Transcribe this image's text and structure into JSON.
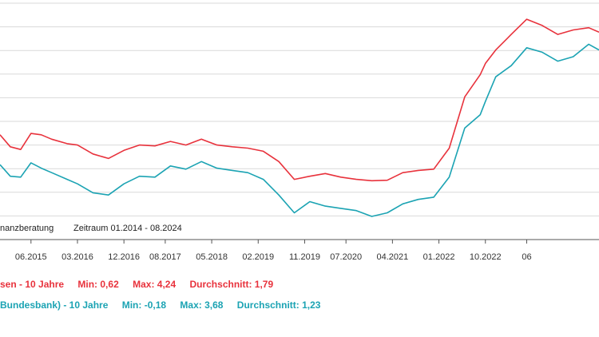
{
  "colors": {
    "series_a": "#e8323c",
    "series_b": "#1ba3b3",
    "grid": "#d9d9d9",
    "axis": "#555555"
  },
  "annotations": {
    "source": "nanzberatung",
    "period": "Zeitraum 01.2014 - 08.2024"
  },
  "legend": [
    {
      "name": "sen - 10 Jahre",
      "min": "Min: 0,62",
      "max": "Max: 4,24",
      "avg": "Durchschnitt: 1,79"
    },
    {
      "name": "Bundesbank) - 10 Jahre",
      "min": "Min: -0,18",
      "max": "Max: 3,68",
      "avg": "Durchschnitt: 1,23"
    }
  ],
  "chart_data": {
    "type": "line",
    "x_ticks": [
      "06.2015",
      "03.2016",
      "12.2016",
      "08.2017",
      "05.2018",
      "02.2019",
      "11.2019",
      "07.2020",
      "04.2021",
      "01.2022",
      "10.2022",
      "06"
    ],
    "x_range": [
      "2014-12",
      "2024-08"
    ],
    "ylim": [
      -0.7,
      4.6
    ],
    "grid": true,
    "legend_position": "bottom",
    "series": [
      {
        "name": "sen - 10 Jahre",
        "x": [
          "2014-12",
          "2015-02",
          "2015-04",
          "2015-06",
          "2015-08",
          "2015-10",
          "2016-01",
          "2016-03",
          "2016-06",
          "2016-09",
          "2016-12",
          "2017-03",
          "2017-06",
          "2017-09",
          "2017-12",
          "2018-03",
          "2018-06",
          "2018-09",
          "2018-12",
          "2019-03",
          "2019-06",
          "2019-09",
          "2019-12",
          "2020-03",
          "2020-06",
          "2020-09",
          "2020-12",
          "2021-03",
          "2021-06",
          "2021-09",
          "2021-12",
          "2022-03",
          "2022-06",
          "2022-09",
          "2022-10",
          "2022-12",
          "2023-03",
          "2023-06",
          "2023-09",
          "2023-12",
          "2024-03",
          "2024-06",
          "2024-08"
        ],
        "y": [
          1.65,
          1.38,
          1.32,
          1.68,
          1.65,
          1.55,
          1.45,
          1.42,
          1.22,
          1.12,
          1.3,
          1.42,
          1.4,
          1.5,
          1.42,
          1.55,
          1.42,
          1.38,
          1.35,
          1.28,
          1.05,
          0.65,
          0.72,
          0.78,
          0.7,
          0.65,
          0.62,
          0.63,
          0.8,
          0.85,
          0.88,
          1.35,
          2.5,
          3.0,
          3.25,
          3.55,
          3.9,
          4.24,
          4.1,
          3.9,
          4.0,
          4.05,
          3.95
        ]
      },
      {
        "name": "Bundesbank) - 10 Jahre",
        "x": [
          "2014-12",
          "2015-02",
          "2015-04",
          "2015-06",
          "2015-08",
          "2015-10",
          "2016-01",
          "2016-03",
          "2016-06",
          "2016-09",
          "2016-12",
          "2017-03",
          "2017-06",
          "2017-09",
          "2017-12",
          "2018-03",
          "2018-06",
          "2018-09",
          "2018-12",
          "2019-03",
          "2019-06",
          "2019-09",
          "2019-12",
          "2020-03",
          "2020-06",
          "2020-09",
          "2020-12",
          "2021-03",
          "2021-06",
          "2021-09",
          "2021-12",
          "2022-03",
          "2022-06",
          "2022-09",
          "2022-10",
          "2022-12",
          "2023-03",
          "2023-06",
          "2023-09",
          "2023-12",
          "2024-03",
          "2024-06",
          "2024-08"
        ],
        "y": [
          0.98,
          0.72,
          0.7,
          1.02,
          0.9,
          0.8,
          0.65,
          0.55,
          0.35,
          0.3,
          0.55,
          0.72,
          0.7,
          0.95,
          0.88,
          1.05,
          0.9,
          0.85,
          0.8,
          0.65,
          0.3,
          -0.1,
          0.15,
          0.05,
          0.0,
          -0.05,
          -0.18,
          -0.1,
          0.1,
          0.2,
          0.25,
          0.7,
          1.8,
          2.1,
          2.4,
          2.95,
          3.2,
          3.6,
          3.5,
          3.3,
          3.4,
          3.68,
          3.55
        ]
      }
    ]
  }
}
